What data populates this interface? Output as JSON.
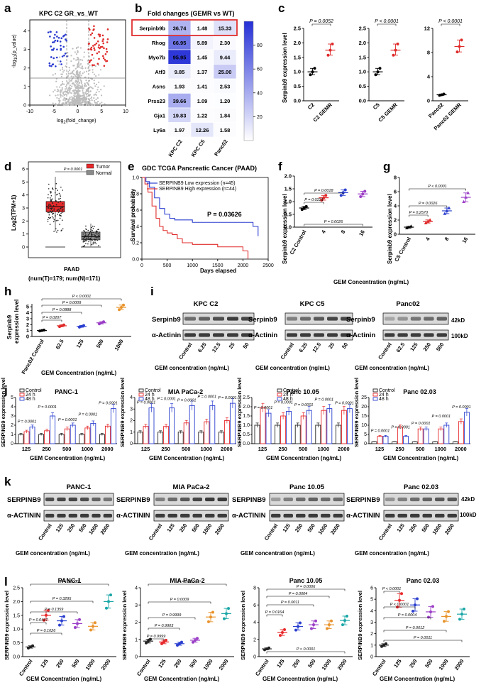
{
  "panel_letters": {
    "a": "a",
    "b": "b",
    "c": "c",
    "d": "d",
    "e": "e",
    "f": "f",
    "g": "g",
    "h": "h",
    "i": "i",
    "j": "j",
    "k": "k",
    "l": "l"
  },
  "panel_a": {
    "title": "KPC C2 GR_vs_WT",
    "ylabel_main": "-log",
    "ylabel_sub": "10",
    "ylabel_tail": "(p_value)",
    "xlabel_main": "log",
    "xlabel_sub": "2",
    "xlabel_tail": "(fold_change)",
    "x_ticks": [
      "-10",
      "-5",
      "0",
      "5",
      "10"
    ],
    "y_ticks": [
      "0",
      "1",
      "2",
      "3",
      "4"
    ]
  },
  "panel_b": {
    "title": "Fold changes (GEMR vs WT)",
    "columns": [
      "KPC C2",
      "KPC C5",
      "Panc02"
    ],
    "rows": [
      {
        "gene": "Serpinb9b",
        "values": [
          "36.74",
          "1.48",
          "15.33"
        ]
      },
      {
        "gene": "Rhog",
        "values": [
          "66.95",
          "5.89",
          "2.30"
        ]
      },
      {
        "gene": "Myo7b",
        "values": [
          "95.95",
          "1.45",
          "9.44"
        ]
      },
      {
        "gene": "Atf3",
        "values": [
          "9.85",
          "1.37",
          "25.00"
        ]
      },
      {
        "gene": "Asns",
        "values": [
          "1.93",
          "1.41",
          "2.53"
        ]
      },
      {
        "gene": "Prss23",
        "values": [
          "39.66",
          "1.09",
          "1.20"
        ]
      },
      {
        "gene": "Gja1",
        "values": [
          "19.83",
          "1.22",
          "1.84"
        ]
      },
      {
        "gene": "Ly6a",
        "values": [
          "1.97",
          "12.26",
          "1.58"
        ]
      }
    ],
    "colorbar_ticks": [
      "80",
      "60",
      "40",
      "20"
    ]
  },
  "panel_c": {
    "ylabel": "Serpinb9 expression level",
    "plots": [
      {
        "p": "P = 0.0052",
        "cats": [
          "C2",
          "C2 GEMR"
        ],
        "y_ticks": [
          "0.0",
          "0.5",
          "1.0",
          "1.5",
          "2.0",
          "2.5"
        ]
      },
      {
        "p": "P < 0.0001",
        "cats": [
          "C5",
          "C5 GEMR"
        ],
        "y_ticks": [
          "0.0",
          "0.5",
          "1.0",
          "1.5",
          "2.0",
          "2.5"
        ]
      },
      {
        "p": "P < 0.0001",
        "cats": [
          "Panc02",
          "Panc02 GEMR"
        ],
        "y_ticks": [
          "0",
          "4",
          "8",
          "12"
        ]
      }
    ]
  },
  "panel_d": {
    "ylabel": "Log2(TPM+1)",
    "legend": [
      "Tumor",
      "Normal"
    ],
    "p": "P = 0.0001",
    "xlabel": "PAAD",
    "counts": "(num(T)=179; num(N)=171)",
    "y_ticks": [
      "0",
      "1",
      "2",
      "3",
      "4",
      "5",
      "6"
    ]
  },
  "panel_e": {
    "title": "GDC TCGA Pancreatic Cancer (PAAD)",
    "legend": [
      "SERPINB9 Low expression (n=45)",
      "SERPINB9 High expression (n=44)"
    ],
    "p": "P = 0.03626",
    "ylabel": "Survival probability",
    "xlabel": "Days elapsed",
    "x_ticks": [
      "0",
      "500",
      "1000",
      "1500",
      "2000",
      "2500"
    ],
    "y_ticks": [
      "0.0",
      "0.2",
      "0.4",
      "0.6",
      "0.8",
      "1.0"
    ]
  },
  "panel_f": {
    "ylabel": "Serpinb9 expression level",
    "cats": [
      "C2 Control",
      "4",
      "8",
      "16"
    ],
    "y_ticks": [
      "0.0",
      "0.5",
      "1.0",
      "1.5",
      "2.0"
    ],
    "p": [
      "P = 0.0018",
      "P = 0.0221",
      "P = 0.0026"
    ]
  },
  "panel_g": {
    "ylabel": "Serpinb9 expression level",
    "cats": [
      "C5 Control",
      "4",
      "8",
      "16"
    ],
    "y_ticks": [
      "0",
      "2",
      "4",
      "6",
      "8"
    ],
    "p": [
      "P < 0.0001",
      "P = 0.0026",
      "P = 0.2570"
    ]
  },
  "fg_xlabel": "GEM Concentration (ng/mL)",
  "panel_h": {
    "ylabel_1": "Serpinb9",
    "ylabel_2": "expression level",
    "cats": [
      "Panc02 Control",
      "62.5",
      "125",
      "500",
      "1000"
    ],
    "y_ticks": [
      "0",
      "1",
      "2",
      "3",
      "4",
      "5"
    ],
    "p": [
      "P < 0.0001",
      "P = 0.0009",
      "P = 0.0888",
      "P = 0.0207"
    ],
    "xlabel": "GEM Concentration (ng/mL)"
  },
  "panel_i": {
    "blots": [
      {
        "title": "KPC C2",
        "lanes": [
          "Control",
          "6.25",
          "12.5",
          "25",
          "50"
        ]
      },
      {
        "title": "KPC C5",
        "lanes": [
          "Control",
          "6.25",
          "12.5",
          "25",
          "50"
        ]
      },
      {
        "title": "Panc02",
        "lanes": [
          "Control",
          "62.5",
          "125",
          "250",
          "500"
        ]
      }
    ],
    "rows": [
      "Serpinb9",
      "α-Actinin"
    ],
    "mw": [
      "42kD",
      "100kD"
    ],
    "xlabel": "GEM concentration (ng/mL)"
  },
  "panel_j": {
    "ylabel": "SERPINB9 expression level",
    "xlabel": "GEM Concentration (ng/mL)",
    "legend": [
      "Control",
      "24 h",
      "48 h"
    ],
    "colors": {
      "control": "#222222",
      "h24": "#e8292b",
      "h48": "#2b3fcf"
    },
    "cats": [
      "125",
      "250",
      "500",
      "1000",
      "2000"
    ],
    "charts": [
      {
        "title": "PANC-1",
        "y_ticks": [
          "0",
          "1",
          "2",
          "3",
          "4",
          "5"
        ]
      },
      {
        "title": "MIA PaCa-2",
        "y_ticks": [
          "0",
          "1",
          "2",
          "3",
          "4"
        ]
      },
      {
        "title": "Panc 10.05",
        "y_ticks": [
          "0.0",
          "0.5",
          "1.0",
          "1.5",
          "2.0",
          "2.5"
        ]
      },
      {
        "title": "Panc 02.03",
        "y_ticks": [
          "0",
          "5",
          "10",
          "15",
          "20",
          "25"
        ]
      }
    ],
    "p_label": "P = 0.0001"
  },
  "panel_k": {
    "blots": [
      {
        "title": "PANC-1"
      },
      {
        "title": "MIA PaCa-2"
      },
      {
        "title": "Panc 10.05"
      },
      {
        "title": "Panc 02.03"
      }
    ],
    "rows": [
      "SERPINB9",
      "α-ACTININ"
    ],
    "lanes": [
      "Control",
      "125",
      "250",
      "500",
      "1000",
      "2000"
    ],
    "mw": [
      "42kD",
      "100kD"
    ],
    "xlabel": "GEM concentration (ng/mL)"
  },
  "panel_l": {
    "ylabel": "SERPINB9 expression level",
    "xlabel": "GEM Concentration (ng/mL)",
    "cats": [
      "Control",
      "125",
      "250",
      "500",
      "1000",
      "2000"
    ],
    "colors": [
      "#222222",
      "#e8292b",
      "#2b3fcf",
      "#9b3fc7",
      "#e8932b",
      "#1aa6a6"
    ],
    "charts": [
      {
        "title": "PANC-1",
        "y_ticks": [
          "0.0",
          "0.5",
          "1.0",
          "1.5",
          "2.0",
          "2.5"
        ],
        "p": [
          "P = 0.0033",
          "P = 0.3295",
          "P = 0.1359",
          "P = 0.0437",
          "P = 0.1026"
        ]
      },
      {
        "title": "MIA PaCa-2",
        "y_ticks": [
          "0",
          "1",
          "2",
          "3",
          "4"
        ],
        "p": [
          "P = 0.0037",
          "P = 0.0009",
          "P = 0.9999",
          "P = 0.9903",
          "P = 0.9999"
        ]
      },
      {
        "title": "Panc 10.05",
        "y_ticks": [
          "0",
          "2",
          "4",
          "6",
          "8"
        ],
        "p": [
          "P = 0.0006",
          "P = 0.0004",
          "P = 0.0011",
          "P = 0.0164",
          "P < 0.0001"
        ]
      },
      {
        "title": "Panc 02.03",
        "y_ticks": [
          "0",
          "1",
          "2",
          "3",
          "4",
          "5",
          "6"
        ],
        "p": [
          "P < 0.0001",
          "P < 0.0001",
          "P = 0.0004",
          "P = 0.0012",
          "P = 0.0011"
        ]
      }
    ]
  },
  "chart_data": [
    {
      "type": "scatter",
      "id": "c1",
      "title": "",
      "categories": [
        "C2",
        "C2 GEMR"
      ],
      "values": [
        1.0,
        1.75
      ],
      "ylim": [
        0,
        2.5
      ]
    },
    {
      "type": "scatter",
      "id": "c2",
      "title": "",
      "categories": [
        "C5",
        "C5 GEMR"
      ],
      "values": [
        1.0,
        1.75
      ],
      "ylim": [
        0,
        2.5
      ]
    },
    {
      "type": "scatter",
      "id": "c3",
      "title": "",
      "categories": [
        "Panc02",
        "Panc02 GEMR"
      ],
      "values": [
        1.0,
        9.0
      ],
      "ylim": [
        0,
        12
      ]
    },
    {
      "type": "scatter",
      "id": "f",
      "categories": [
        "C2 Control",
        "4",
        "8",
        "16"
      ],
      "values": [
        0.75,
        1.15,
        1.35,
        1.3
      ],
      "ylim": [
        0,
        2
      ]
    },
    {
      "type": "scatter",
      "id": "g",
      "categories": [
        "C5 Control",
        "4",
        "8",
        "16"
      ],
      "values": [
        1.0,
        1.8,
        3.3,
        5.2
      ],
      "ylim": [
        0,
        8
      ]
    },
    {
      "type": "scatter",
      "id": "h",
      "categories": [
        "Panc02 Control",
        "62.5",
        "125",
        "500",
        "1000"
      ],
      "values": [
        1.0,
        1.8,
        1.7,
        2.3,
        4.9
      ],
      "ylim": [
        0,
        5
      ]
    },
    {
      "type": "line",
      "id": "e",
      "xlabel": "Days elapsed",
      "ylabel": "Survival probability",
      "series": [
        {
          "name": "SERPINB9 Low expression (n=45)",
          "x": [
            0,
            80,
            150,
            250,
            350,
            450,
            550,
            650,
            800,
            1000,
            1300,
            1600,
            2100,
            2200,
            2300
          ],
          "y": [
            1.0,
            0.95,
            0.88,
            0.75,
            0.62,
            0.55,
            0.5,
            0.48,
            0.48,
            0.45,
            0.45,
            0.45,
            0.45,
            0.4,
            0.28
          ]
        },
        {
          "name": "SERPINB9 High expression (n=44)",
          "x": [
            0,
            60,
            120,
            200,
            280,
            350,
            420,
            500,
            600,
            700,
            800,
            1000,
            1500,
            2000,
            2100
          ],
          "y": [
            1.0,
            0.92,
            0.82,
            0.65,
            0.5,
            0.4,
            0.35,
            0.32,
            0.3,
            0.25,
            0.2,
            0.18,
            0.15,
            0.1,
            0.0
          ]
        }
      ],
      "xlim": [
        0,
        2500
      ],
      "ylim": [
        0,
        1
      ]
    },
    {
      "type": "bar",
      "id": "j1",
      "title": "PANC-1",
      "categories": [
        "125",
        "250",
        "500",
        "1000",
        "2000"
      ],
      "series": [
        {
          "name": "Control",
          "values": [
            1,
            1,
            1,
            1,
            1
          ]
        },
        {
          "name": "24 h",
          "values": [
            1.3,
            1.4,
            1.6,
            1.7,
            1.9
          ]
        },
        {
          "name": "48 h",
          "values": [
            1.8,
            3.0,
            2.0,
            2.2,
            3.8
          ]
        }
      ],
      "ylim": [
        0,
        5
      ]
    },
    {
      "type": "bar",
      "id": "j2",
      "title": "MIA PaCa-2",
      "categories": [
        "125",
        "250",
        "500",
        "1000",
        "2000"
      ],
      "series": [
        {
          "name": "Control",
          "values": [
            1,
            1,
            1,
            1,
            1
          ]
        },
        {
          "name": "24 h",
          "values": [
            1.5,
            1.5,
            1.8,
            1.9,
            2.0
          ]
        },
        {
          "name": "48 h",
          "values": [
            3.1,
            3.1,
            3.3,
            3.3,
            3.5
          ]
        }
      ],
      "ylim": [
        0,
        4
      ]
    },
    {
      "type": "bar",
      "id": "j3",
      "title": "Panc 10.05",
      "categories": [
        "125",
        "250",
        "500",
        "1000",
        "2000"
      ],
      "series": [
        {
          "name": "Control",
          "values": [
            1,
            1,
            1,
            1,
            1
          ]
        },
        {
          "name": "24 h",
          "values": [
            1.95,
            1.5,
            1.5,
            1.8,
            1.8
          ]
        },
        {
          "name": "48 h",
          "values": [
            1.65,
            1.75,
            1.8,
            1.9,
            1.9
          ]
        }
      ],
      "ylim": [
        0,
        2.5
      ]
    },
    {
      "type": "bar",
      "id": "j4",
      "title": "Panc 02.03",
      "categories": [
        "125",
        "250",
        "500",
        "1000",
        "2000"
      ],
      "series": [
        {
          "name": "Control",
          "values": [
            1,
            1,
            1,
            1,
            1
          ]
        },
        {
          "name": "24 h",
          "values": [
            4,
            9,
            8,
            8,
            12
          ]
        },
        {
          "name": "48 h",
          "values": [
            4,
            4,
            8,
            10,
            17
          ]
        }
      ],
      "ylim": [
        0,
        25
      ]
    },
    {
      "type": "scatter",
      "id": "l1",
      "title": "PANC-1",
      "categories": [
        "Control",
        "125",
        "250",
        "500",
        "1000",
        "2000"
      ],
      "values": [
        0.35,
        1.5,
        1.3,
        1.2,
        1.1,
        2.0
      ],
      "ylim": [
        0,
        2.5
      ]
    },
    {
      "type": "scatter",
      "id": "l2",
      "title": "MIA PaCa-2",
      "categories": [
        "Control",
        "125",
        "250",
        "500",
        "1000",
        "2000"
      ],
      "values": [
        0.9,
        0.85,
        0.75,
        0.95,
        2.3,
        2.5
      ],
      "ylim": [
        0,
        4
      ]
    },
    {
      "type": "scatter",
      "id": "l3",
      "title": "Panc 10.05",
      "categories": [
        "Control",
        "125",
        "250",
        "500",
        "1000",
        "2000"
      ],
      "values": [
        0.9,
        2.8,
        3.5,
        3.7,
        3.7,
        4.2
      ],
      "ylim": [
        0,
        8
      ]
    },
    {
      "type": "scatter",
      "id": "l4",
      "title": "Panc 02.03",
      "categories": [
        "Control",
        "125",
        "250",
        "500",
        "1000",
        "2000"
      ],
      "values": [
        1.0,
        4.9,
        4.5,
        3.9,
        3.5,
        3.7
      ],
      "ylim": [
        0,
        6
      ]
    }
  ]
}
